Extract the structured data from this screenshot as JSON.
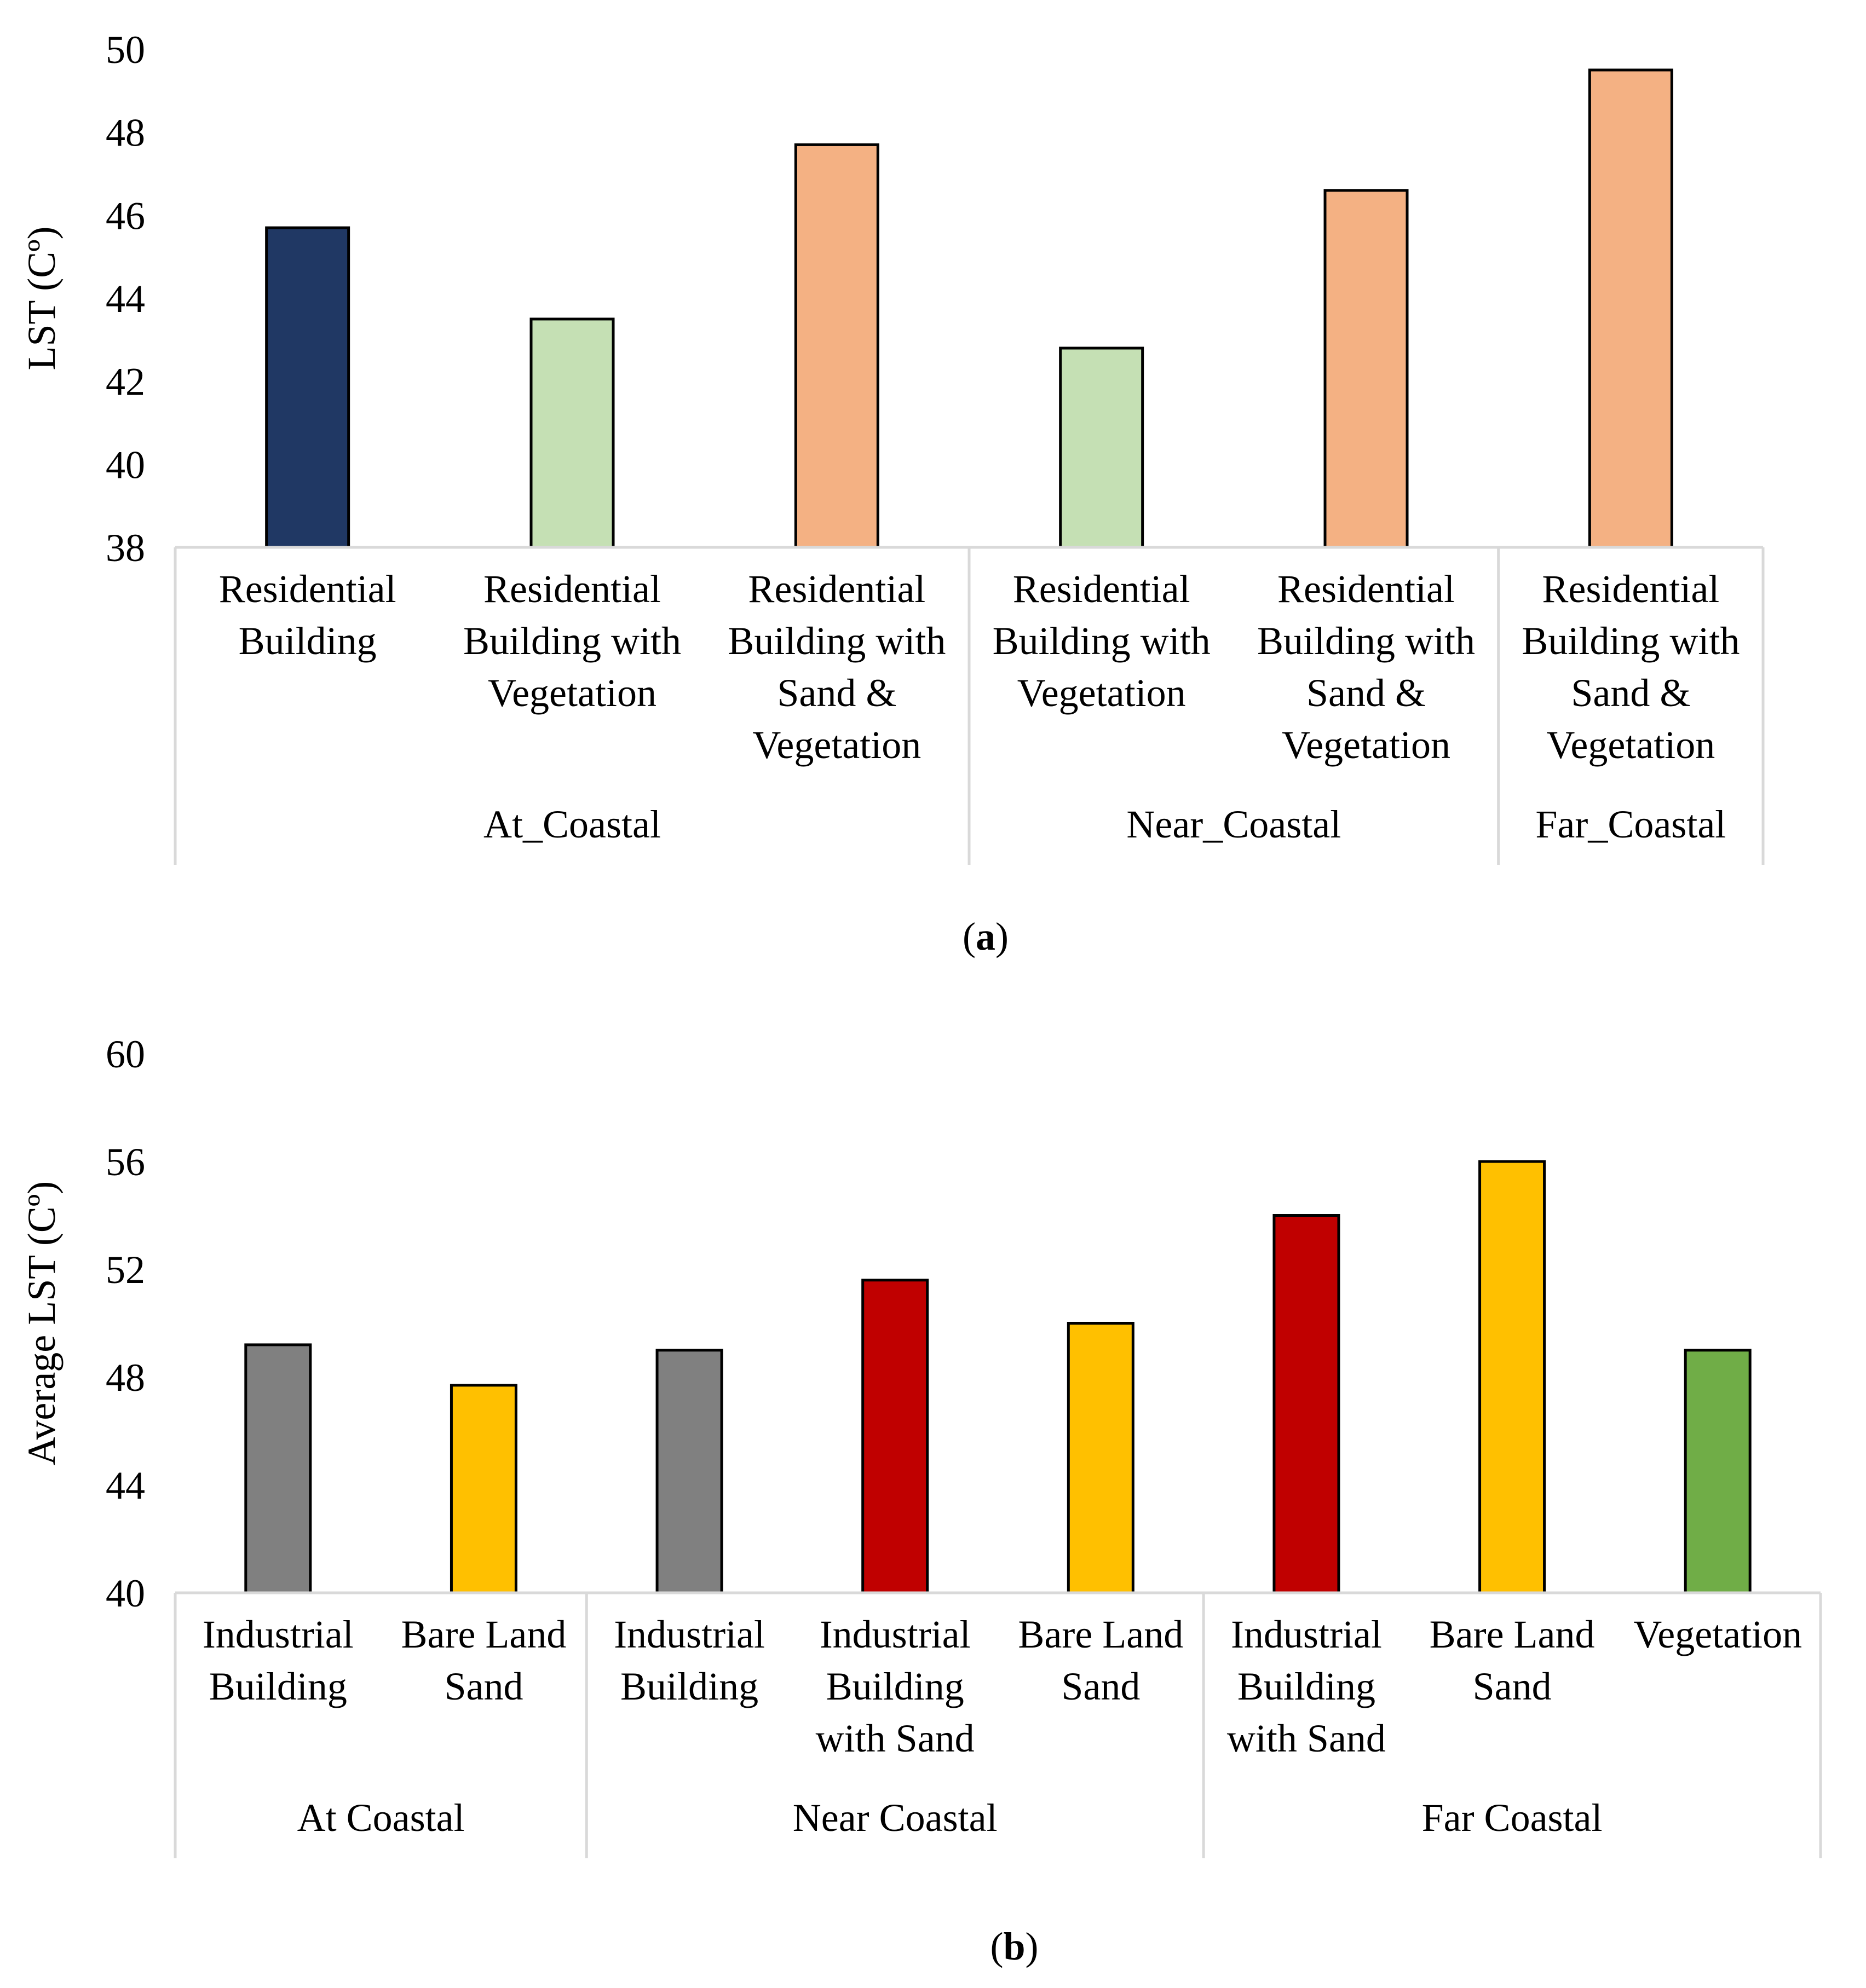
{
  "chart_data": [
    {
      "type": "bar",
      "panel_label": "a",
      "ylabel": "LST (Cº)",
      "ylim": [
        38,
        50
      ],
      "yticks": [
        "38",
        "40",
        "42",
        "44",
        "46",
        "48",
        "50"
      ],
      "grid": false,
      "categories": [
        [
          "Residential",
          "Building"
        ],
        [
          "Residential",
          "Building with",
          "Vegetation"
        ],
        [
          "Residential",
          "Building with",
          "Sand &",
          "Vegetation"
        ],
        [
          "Residential",
          "Building with",
          "Vegetation"
        ],
        [
          "Residential",
          "Building with",
          "Sand &",
          "Vegetation"
        ],
        [
          "Residential",
          "Building with",
          "Sand &",
          "Vegetation"
        ]
      ],
      "values": [
        45.7,
        43.5,
        47.7,
        42.8,
        46.6,
        49.5
      ],
      "colors": [
        "#203864",
        "#c5e0b4",
        "#f4b183",
        "#c5e0b4",
        "#f4b183",
        "#f4b183"
      ],
      "groups": [
        {
          "name": "At_Coastal",
          "count": 3
        },
        {
          "name": "Near_Coastal",
          "count": 2
        },
        {
          "name": "Far_Coastal",
          "count": 1
        }
      ]
    },
    {
      "type": "bar",
      "panel_label": "b",
      "ylabel": "Average LST (Cº)",
      "ylim": [
        40,
        60
      ],
      "yticks": [
        "40",
        "44",
        "48",
        "52",
        "56",
        "60"
      ],
      "grid": false,
      "categories": [
        [
          "Industrial",
          "Building"
        ],
        [
          "Bare Land",
          "Sand"
        ],
        [
          "Industrial",
          "Building"
        ],
        [
          "Industrial",
          "Building",
          "with Sand"
        ],
        [
          "Bare Land",
          "Sand"
        ],
        [
          "Industrial",
          "Building",
          "with Sand"
        ],
        [
          "Bare Land",
          "Sand"
        ],
        [
          "Vegetation"
        ]
      ],
      "values": [
        49.2,
        47.7,
        49.0,
        51.6,
        50.0,
        54.0,
        56.0,
        49.0
      ],
      "colors": [
        "#808080",
        "#ffc000",
        "#808080",
        "#c00000",
        "#ffc000",
        "#c00000",
        "#ffc000",
        "#70ad47"
      ],
      "groups": [
        {
          "name": "At Coastal",
          "count": 2
        },
        {
          "name": "Near Coastal",
          "count": 3
        },
        {
          "name": "Far Coastal",
          "count": 3
        }
      ]
    }
  ]
}
